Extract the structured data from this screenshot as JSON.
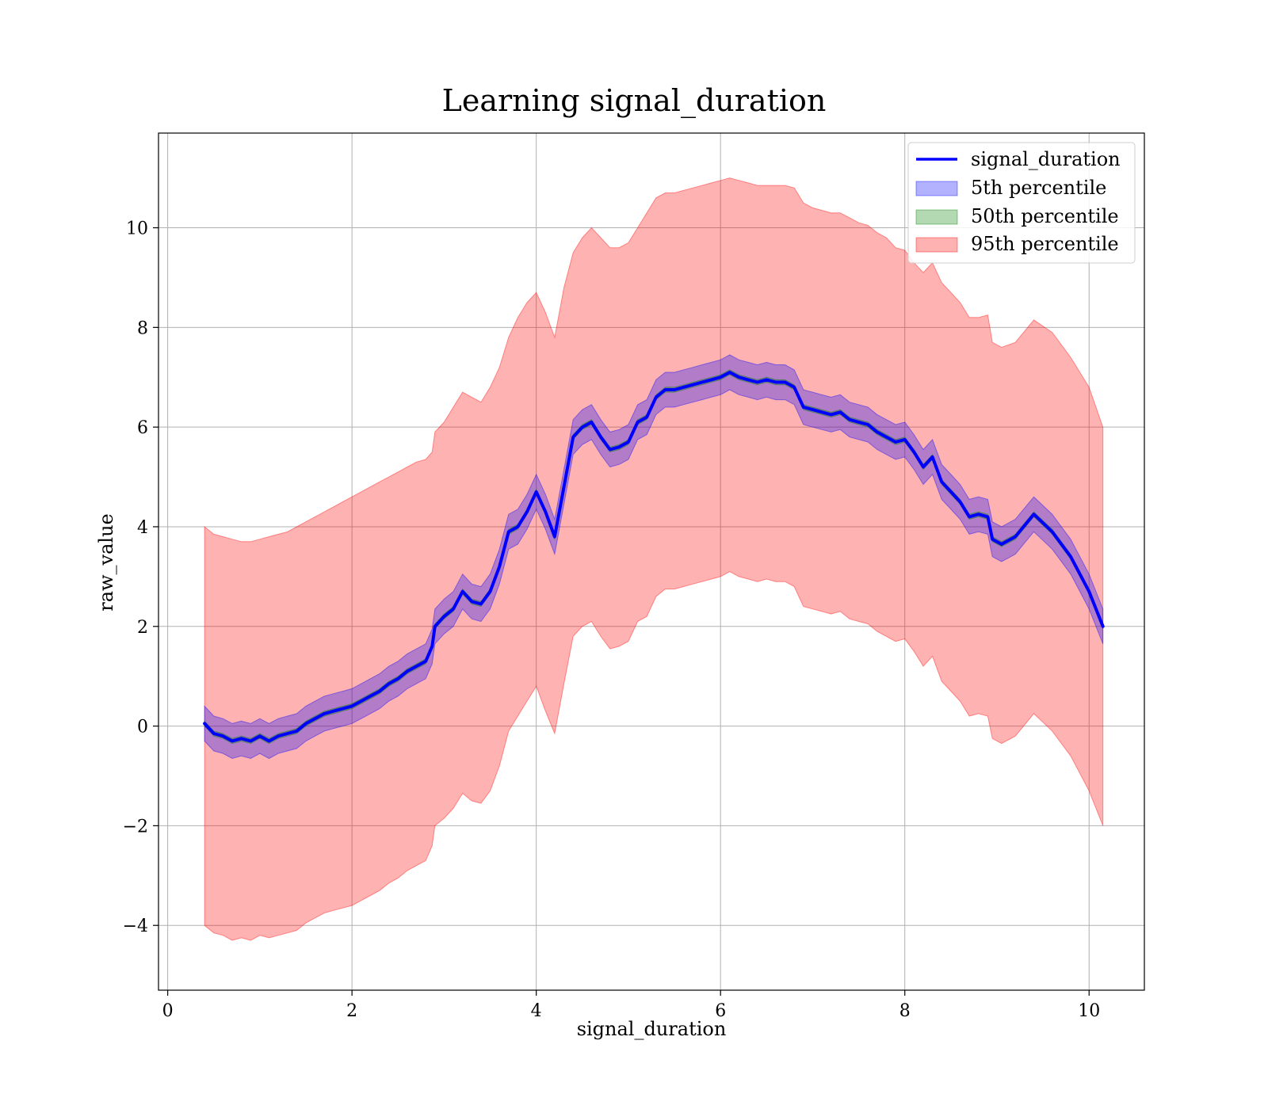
{
  "chart_data": {
    "type": "line",
    "title": "Learning signal_duration",
    "xlabel": "signal_duration",
    "ylabel": "raw_value",
    "xlim": [
      -0.1,
      10.6
    ],
    "ylim": [
      -5.3,
      11.9
    ],
    "xticks": [
      0,
      2,
      4,
      6,
      8,
      10
    ],
    "yticks": [
      -4,
      -2,
      0,
      2,
      4,
      6,
      8,
      10
    ],
    "x_tick_labels": [
      "0",
      "2",
      "4",
      "6",
      "8",
      "10"
    ],
    "y_tick_labels": [
      "−4",
      "−2",
      "0",
      "2",
      "4",
      "6",
      "8",
      "10"
    ],
    "grid": true,
    "legend_position": "top-right",
    "x": [
      0.4,
      0.5,
      0.6,
      0.7,
      0.8,
      0.9,
      1.0,
      1.1,
      1.2,
      1.3,
      1.4,
      1.5,
      1.6,
      1.7,
      1.8,
      1.9,
      2.0,
      2.1,
      2.2,
      2.3,
      2.4,
      2.5,
      2.6,
      2.7,
      2.8,
      2.87,
      2.9,
      3.0,
      3.1,
      3.2,
      3.3,
      3.4,
      3.5,
      3.6,
      3.7,
      3.8,
      3.9,
      4.0,
      4.1,
      4.2,
      4.3,
      4.4,
      4.5,
      4.6,
      4.7,
      4.8,
      4.9,
      5.0,
      5.1,
      5.2,
      5.3,
      5.4,
      5.5,
      5.6,
      5.7,
      5.8,
      5.9,
      6.0,
      6.1,
      6.2,
      6.3,
      6.4,
      6.5,
      6.6,
      6.7,
      6.8,
      6.9,
      7.0,
      7.1,
      7.2,
      7.3,
      7.4,
      7.5,
      7.6,
      7.7,
      7.8,
      7.9,
      8.0,
      8.1,
      8.2,
      8.3,
      8.4,
      8.5,
      8.6,
      8.7,
      8.8,
      8.9,
      8.95,
      9.05,
      9.2,
      9.4,
      9.6,
      9.8,
      10.0,
      10.15
    ],
    "series": [
      {
        "name": "signal_duration",
        "kind": "line",
        "color": "#0000ff",
        "values": [
          0.05,
          -0.15,
          -0.2,
          -0.3,
          -0.25,
          -0.3,
          -0.2,
          -0.3,
          -0.2,
          -0.15,
          -0.1,
          0.05,
          0.15,
          0.25,
          0.3,
          0.35,
          0.4,
          0.5,
          0.6,
          0.7,
          0.85,
          0.95,
          1.1,
          1.2,
          1.3,
          1.6,
          2.0,
          2.2,
          2.35,
          2.7,
          2.5,
          2.45,
          2.7,
          3.2,
          3.9,
          4.0,
          4.3,
          4.7,
          4.3,
          3.8,
          4.8,
          5.8,
          6.0,
          6.1,
          5.8,
          5.55,
          5.6,
          5.7,
          6.1,
          6.2,
          6.6,
          6.75,
          6.75,
          6.8,
          6.85,
          6.9,
          6.95,
          7.0,
          7.1,
          7.0,
          6.95,
          6.9,
          6.95,
          6.9,
          6.9,
          6.8,
          6.4,
          6.35,
          6.3,
          6.25,
          6.3,
          6.15,
          6.1,
          6.05,
          5.9,
          5.8,
          5.7,
          5.75,
          5.5,
          5.2,
          5.4,
          4.9,
          4.7,
          4.5,
          4.2,
          4.25,
          4.2,
          3.75,
          3.65,
          3.8,
          4.25,
          3.9,
          3.4,
          2.7,
          2.0
        ]
      },
      {
        "name": "5th percentile",
        "kind": "band",
        "color": "#0000ff",
        "opacity": 0.3,
        "half_width": 0.35
      },
      {
        "name": "50th percentile",
        "kind": "band",
        "color": "#008000",
        "opacity": 0.3,
        "half_width": 0.05
      },
      {
        "name": "95th percentile",
        "kind": "band",
        "color": "#ff0000",
        "opacity": 0.3,
        "upper": [
          4.0,
          3.85,
          3.8,
          3.75,
          3.7,
          3.7,
          3.75,
          3.8,
          3.85,
          3.9,
          4.0,
          4.1,
          4.2,
          4.3,
          4.4,
          4.5,
          4.6,
          4.7,
          4.8,
          4.9,
          5.0,
          5.1,
          5.2,
          5.3,
          5.35,
          5.5,
          5.9,
          6.1,
          6.4,
          6.7,
          6.6,
          6.5,
          6.8,
          7.2,
          7.8,
          8.2,
          8.5,
          8.7,
          8.3,
          7.8,
          8.8,
          9.5,
          9.8,
          10.0,
          9.8,
          9.6,
          9.6,
          9.7,
          10.0,
          10.3,
          10.6,
          10.7,
          10.7,
          10.75,
          10.8,
          10.85,
          10.9,
          10.95,
          11.0,
          10.95,
          10.9,
          10.85,
          10.85,
          10.85,
          10.85,
          10.8,
          10.5,
          10.4,
          10.35,
          10.3,
          10.3,
          10.2,
          10.1,
          10.05,
          9.9,
          9.8,
          9.6,
          9.55,
          9.3,
          9.1,
          9.3,
          8.9,
          8.7,
          8.5,
          8.2,
          8.2,
          8.25,
          7.7,
          7.6,
          7.7,
          8.15,
          7.9,
          7.4,
          6.8,
          6.0
        ],
        "lower": [
          -4.0,
          -4.15,
          -4.2,
          -4.3,
          -4.25,
          -4.3,
          -4.2,
          -4.25,
          -4.2,
          -4.15,
          -4.1,
          -3.95,
          -3.85,
          -3.75,
          -3.7,
          -3.65,
          -3.6,
          -3.5,
          -3.4,
          -3.3,
          -3.15,
          -3.05,
          -2.9,
          -2.8,
          -2.7,
          -2.4,
          -2.0,
          -1.85,
          -1.65,
          -1.35,
          -1.5,
          -1.55,
          -1.3,
          -0.8,
          -0.1,
          0.2,
          0.5,
          0.8,
          0.3,
          -0.15,
          0.85,
          1.8,
          2.0,
          2.1,
          1.8,
          1.55,
          1.6,
          1.7,
          2.1,
          2.2,
          2.6,
          2.75,
          2.75,
          2.8,
          2.85,
          2.9,
          2.95,
          3.0,
          3.1,
          3.0,
          2.95,
          2.9,
          2.95,
          2.9,
          2.9,
          2.8,
          2.4,
          2.35,
          2.3,
          2.25,
          2.3,
          2.15,
          2.1,
          2.05,
          1.9,
          1.8,
          1.7,
          1.75,
          1.5,
          1.2,
          1.4,
          0.9,
          0.7,
          0.5,
          0.2,
          0.25,
          0.2,
          -0.25,
          -0.35,
          -0.2,
          0.25,
          -0.1,
          -0.6,
          -1.3,
          -2.0
        ]
      }
    ]
  }
}
